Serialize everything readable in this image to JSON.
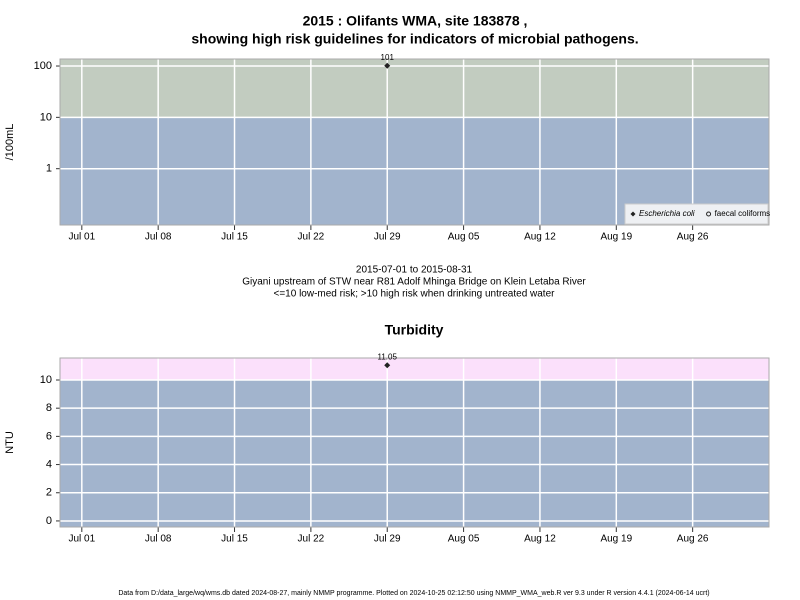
{
  "chart_data": [
    {
      "type": "scatter",
      "title": "2015 : Olifants WMA, site 183878 ,",
      "subtitle": "showing high risk guidelines for indicators of microbial pathogens.",
      "notes": [
        "2015-07-01 to 2015-08-31",
        "Giyani upstream of STW near R81 Adolf Mhinga Bridge on Klein Letaba River",
        "<=10 low-med risk; >10 high risk when drinking untreated water"
      ],
      "ylabel": "/100mL",
      "log_y": true,
      "xlim": [
        "2015-06-29",
        "2015-09-02"
      ],
      "xticks": [
        {
          "value": "2015-07-01",
          "label": "Jul 01"
        },
        {
          "value": "2015-07-08",
          "label": "Jul 08"
        },
        {
          "value": "2015-07-15",
          "label": "Jul 15"
        },
        {
          "value": "2015-07-22",
          "label": "Jul 22"
        },
        {
          "value": "2015-07-29",
          "label": "Jul 29"
        },
        {
          "value": "2015-08-05",
          "label": "Aug 05"
        },
        {
          "value": "2015-08-12",
          "label": "Aug 12"
        },
        {
          "value": "2015-08-19",
          "label": "Aug 19"
        },
        {
          "value": "2015-08-26",
          "label": "Aug 26"
        }
      ],
      "ylim": [
        0.08,
        137
      ],
      "yticks": [
        1,
        10,
        100
      ],
      "threshold": 10,
      "color_below": "#a2b4cd",
      "color_above": "#c2ccc0",
      "grid": true,
      "legend": "lower right",
      "series": [
        {
          "name": "Escherichia coli",
          "marker": "diamond",
          "font_style": "italic",
          "color": "#222222",
          "x": [
            "2015-07-29"
          ],
          "values": [
            101
          ],
          "value_labels": [
            "101"
          ]
        },
        {
          "name": "faecal coliforms",
          "marker": "circle",
          "font_style": "normal",
          "color": "#222222",
          "x": [],
          "values": []
        }
      ]
    },
    {
      "type": "scatter",
      "title": "Turbidity",
      "ylabel": "NTU",
      "log_y": false,
      "xlim": [
        "2015-06-29",
        "2015-09-02"
      ],
      "xticks": [
        {
          "value": "2015-07-01",
          "label": "Jul 01"
        },
        {
          "value": "2015-07-08",
          "label": "Jul 08"
        },
        {
          "value": "2015-07-15",
          "label": "Jul 15"
        },
        {
          "value": "2015-07-22",
          "label": "Jul 22"
        },
        {
          "value": "2015-07-29",
          "label": "Jul 29"
        },
        {
          "value": "2015-08-05",
          "label": "Aug 05"
        },
        {
          "value": "2015-08-12",
          "label": "Aug 12"
        },
        {
          "value": "2015-08-19",
          "label": "Aug 19"
        },
        {
          "value": "2015-08-26",
          "label": "Aug 26"
        }
      ],
      "ylim": [
        -0.43,
        11.56
      ],
      "yticks": [
        0,
        2,
        4,
        6,
        8,
        10
      ],
      "threshold": 10,
      "color_below": "#a2b4cd",
      "color_above": "#fbe0fb",
      "grid": true,
      "series": [
        {
          "marker": "diamond",
          "color": "#222222",
          "x": [
            "2015-07-29"
          ],
          "values": [
            11.05
          ],
          "value_labels": [
            "11.05"
          ]
        }
      ]
    }
  ],
  "footer": "Data from D:/data_large/wq/wms.db dated 2024-08-27, mainly NMMP programme. Plotted on 2024-10-25 02:12:50 using NMMP_WMA_web.R ver 9.3 under R version 4.4.1 (2024-06-14 ucrt)"
}
